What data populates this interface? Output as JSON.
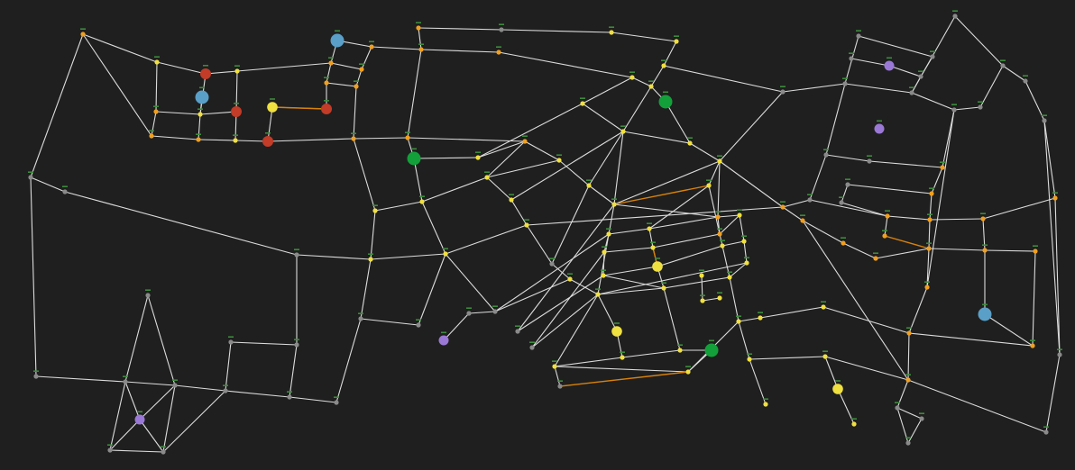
{
  "colors": {
    "background": "#1f1f1f",
    "edge": "#dcdcdc",
    "edge_highlight": "#d9820a",
    "junction_gray": "#8a8a8a",
    "junction_yellow": "#f0e040",
    "junction_orange": "#f0a020",
    "poi_blue": "#5a9fc8",
    "poi_red": "#c23c28",
    "poi_green": "#13a03a",
    "poi_yellow": "#f0e040",
    "poi_purple": "#9a78d6",
    "node_tag": "#3c8a3c"
  },
  "network": {
    "node_count": 150,
    "edge_count": 213,
    "highlighted_edges": 6,
    "poi_count": 20
  }
}
